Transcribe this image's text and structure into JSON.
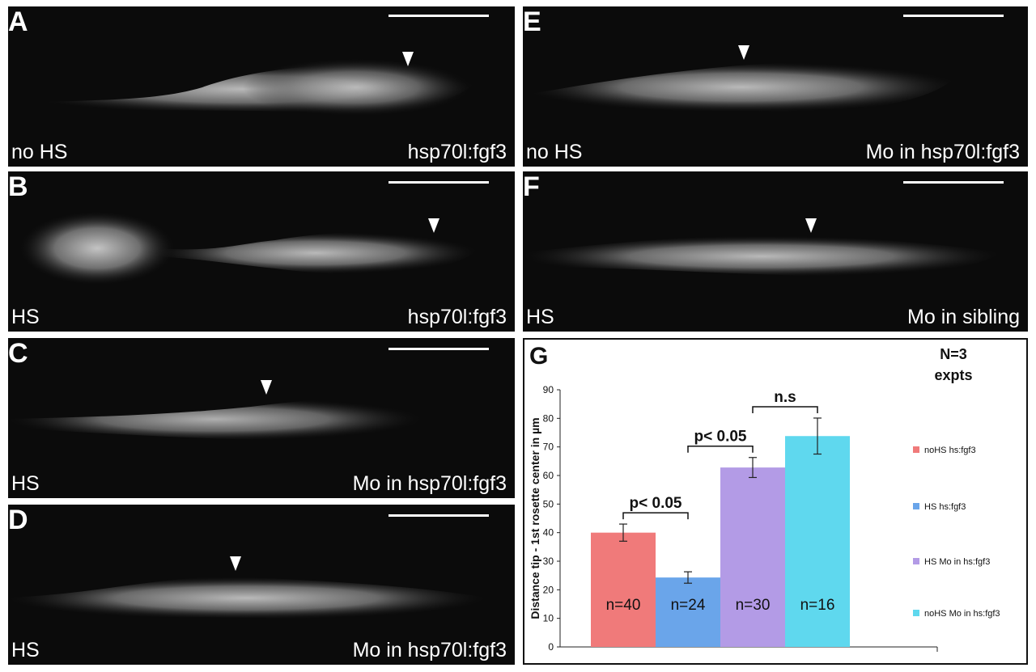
{
  "panels": [
    {
      "letter": "A",
      "condition": "no HS",
      "label": "hsp70l:fgf3"
    },
    {
      "letter": "B",
      "condition": "HS",
      "label": "hsp70l:fgf3"
    },
    {
      "letter": "C",
      "condition": "HS",
      "label": "Mo in hsp70l:fgf3"
    },
    {
      "letter": "D",
      "condition": "HS",
      "label": "Mo in hsp70l:fgf3"
    },
    {
      "letter": "E",
      "condition": "no HS",
      "label": "Mo in hsp70l:fgf3"
    },
    {
      "letter": "F",
      "condition": "HS",
      "label": "Mo in sibling"
    }
  ],
  "chart": {
    "letter": "G",
    "note_line1": "N=3",
    "note_line2": "expts"
  },
  "chart_data": {
    "type": "bar",
    "categories": [
      "noHS hs:fgf3",
      "HS hs:fgf3",
      "HS Mo in hs:fgf3",
      "noHS Mo in hs:fgf3"
    ],
    "values": [
      40,
      24.3,
      62.8,
      73.8
    ],
    "errors": [
      3,
      2,
      3.5,
      6.3
    ],
    "bar_labels": [
      "n=40",
      "n=24",
      "n=30",
      "n=16"
    ],
    "colors": [
      "#f07a7a",
      "#6aa5ea",
      "#b39be6",
      "#5fd8ee"
    ],
    "ylabel": "Distance tip - 1st rosette center in µm",
    "ylim": [
      0,
      90
    ],
    "yticks": [
      "0",
      "10",
      "20",
      "30",
      "40",
      "50",
      "60",
      "70",
      "80",
      "90"
    ],
    "legend": [
      "noHS hs:fgf3",
      "HS hs:fgf3",
      "HS Mo in hs:fgf3",
      "noHS Mo in hs:fgf3"
    ],
    "legend_position": "right",
    "annotations": [
      {
        "text": "p< 0.05",
        "from": 0,
        "to": 1
      },
      {
        "text": "p< 0.05",
        "from": 1,
        "to": 2
      },
      {
        "text": "n.s",
        "from": 2,
        "to": 3
      }
    ]
  }
}
